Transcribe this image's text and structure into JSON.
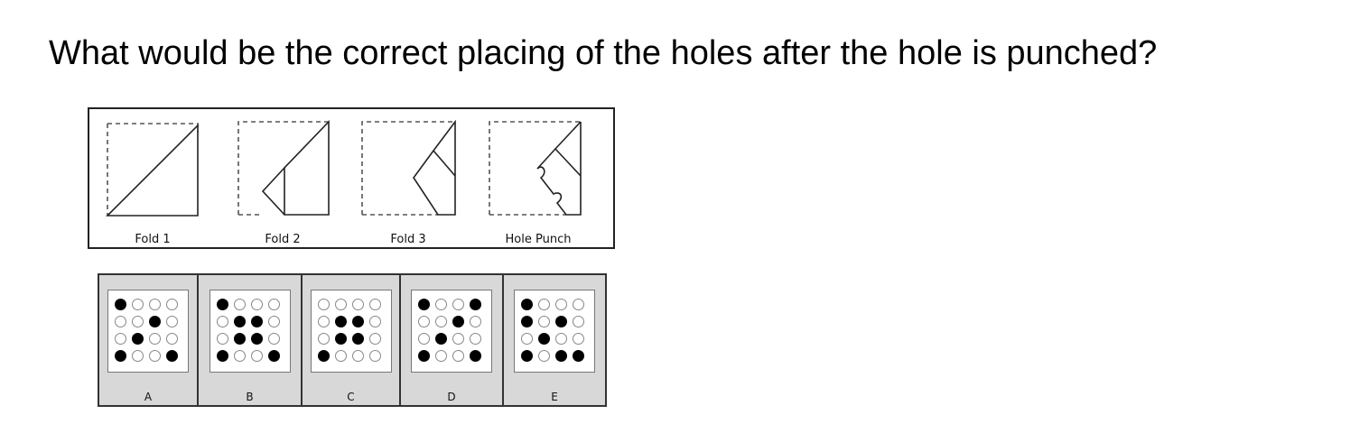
{
  "question": "What would be the correct placing of the holes after the hole is punched?",
  "steps": [
    "Fold 1",
    "Fold 2",
    "Fold 3",
    "Hole Punch"
  ],
  "options": [
    {
      "label": "A",
      "grid": [
        [
          1,
          0,
          0,
          0
        ],
        [
          0,
          0,
          1,
          0
        ],
        [
          0,
          1,
          0,
          0
        ],
        [
          1,
          0,
          0,
          1
        ]
      ]
    },
    {
      "label": "B",
      "grid": [
        [
          1,
          0,
          0,
          0
        ],
        [
          0,
          1,
          1,
          0
        ],
        [
          0,
          1,
          1,
          0
        ],
        [
          1,
          0,
          0,
          1
        ]
      ]
    },
    {
      "label": "C",
      "grid": [
        [
          0,
          0,
          0,
          0
        ],
        [
          0,
          1,
          1,
          0
        ],
        [
          0,
          1,
          1,
          0
        ],
        [
          1,
          0,
          0,
          0
        ]
      ]
    },
    {
      "label": "D",
      "grid": [
        [
          1,
          0,
          0,
          1
        ],
        [
          0,
          0,
          1,
          0
        ],
        [
          0,
          1,
          0,
          0
        ],
        [
          1,
          0,
          0,
          1
        ]
      ]
    },
    {
      "label": "E",
      "grid": [
        [
          1,
          0,
          0,
          0
        ],
        [
          1,
          0,
          1,
          0
        ],
        [
          0,
          1,
          0,
          0
        ],
        [
          1,
          0,
          1,
          1
        ]
      ]
    }
  ]
}
